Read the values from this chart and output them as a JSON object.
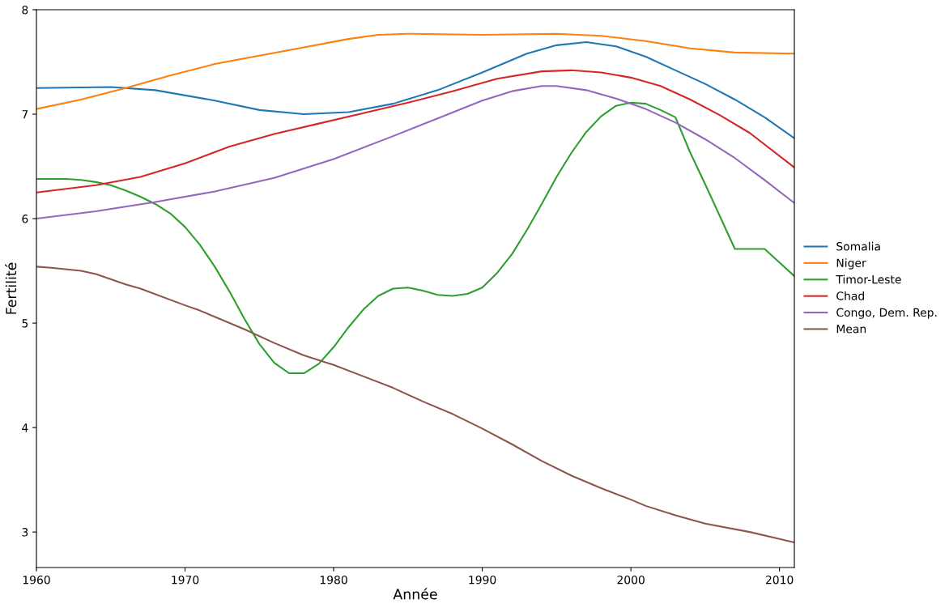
{
  "chart_data": {
    "type": "line",
    "xlabel": "Année",
    "ylabel": "Fertilité",
    "xlim": [
      1960,
      2011
    ],
    "ylim": [
      2.66,
      8
    ],
    "xticks": [
      1960,
      1970,
      1980,
      1990,
      2000,
      2010
    ],
    "yticks": [
      3,
      4,
      5,
      6,
      7,
      8
    ],
    "grid": false,
    "legend": "right",
    "marker": "none",
    "line_style": "solid",
    "series": [
      {
        "name": "Somalia",
        "color": "#1f77b4",
        "x": [
          1960,
          1965,
          1968,
          1972,
          1975,
          1978,
          1981,
          1984,
          1987,
          1990,
          1993,
          1995,
          1997,
          1999,
          2001,
          2003,
          2005,
          2007,
          2009,
          2011
        ],
        "values": [
          7.25,
          7.26,
          7.23,
          7.13,
          7.04,
          7.0,
          7.02,
          7.1,
          7.23,
          7.4,
          7.58,
          7.66,
          7.69,
          7.65,
          7.55,
          7.42,
          7.29,
          7.14,
          6.97,
          6.77
        ]
      },
      {
        "name": "Niger",
        "color": "#ff7f0e",
        "x": [
          1960,
          1963,
          1966,
          1969,
          1972,
          1975,
          1978,
          1981,
          1983,
          1985,
          1990,
          1995,
          1998,
          2001,
          2004,
          2007,
          2011
        ],
        "values": [
          7.05,
          7.14,
          7.25,
          7.37,
          7.48,
          7.56,
          7.64,
          7.72,
          7.76,
          7.77,
          7.76,
          7.77,
          7.75,
          7.7,
          7.63,
          7.59,
          7.58
        ]
      },
      {
        "name": "Timor-Leste",
        "color": "#2ca02c",
        "x": [
          1960,
          1962,
          1963,
          1964,
          1965,
          1966,
          1967,
          1968,
          1969,
          1970,
          1971,
          1972,
          1973,
          1974,
          1975,
          1976,
          1977,
          1978,
          1979,
          1980,
          1981,
          1982,
          1983,
          1984,
          1985,
          1986,
          1987,
          1988,
          1989,
          1990,
          1991,
          1992,
          1993,
          1994,
          1995,
          1996,
          1997,
          1998,
          1999,
          2000,
          2001,
          2002,
          2003,
          2004,
          2005,
          2006,
          2007,
          2008,
          2009,
          2010,
          2011
        ],
        "values": [
          6.38,
          6.38,
          6.37,
          6.35,
          6.32,
          6.27,
          6.21,
          6.14,
          6.05,
          5.92,
          5.75,
          5.54,
          5.3,
          5.04,
          4.8,
          4.62,
          4.52,
          4.52,
          4.61,
          4.77,
          4.96,
          5.13,
          5.26,
          5.33,
          5.34,
          5.31,
          5.27,
          5.26,
          5.28,
          5.34,
          5.48,
          5.66,
          5.89,
          6.14,
          6.4,
          6.63,
          6.83,
          6.98,
          7.08,
          7.11,
          7.1,
          7.04,
          6.97,
          6.63,
          6.33,
          6.02,
          5.71,
          5.71,
          5.71,
          5.58,
          5.45
        ]
      },
      {
        "name": "Chad",
        "color": "#d62728",
        "x": [
          1960,
          1964,
          1967,
          1970,
          1973,
          1976,
          1979,
          1982,
          1985,
          1988,
          1991,
          1994,
          1996,
          1998,
          2000,
          2002,
          2004,
          2006,
          2008,
          2011
        ],
        "values": [
          6.25,
          6.32,
          6.4,
          6.53,
          6.69,
          6.81,
          6.91,
          7.01,
          7.11,
          7.22,
          7.34,
          7.41,
          7.42,
          7.4,
          7.35,
          7.27,
          7.14,
          6.99,
          6.82,
          6.49
        ]
      },
      {
        "name": "Congo, Dem. Rep.",
        "color": "#9467bd",
        "x": [
          1960,
          1964,
          1968,
          1972,
          1976,
          1980,
          1984,
          1987,
          1990,
          1992,
          1994,
          1995,
          1997,
          1999,
          2001,
          2003,
          2005,
          2007,
          2009,
          2011
        ],
        "values": [
          6.0,
          6.07,
          6.16,
          6.26,
          6.39,
          6.57,
          6.79,
          6.96,
          7.13,
          7.22,
          7.27,
          7.27,
          7.23,
          7.15,
          7.05,
          6.92,
          6.76,
          6.58,
          6.37,
          6.15
        ]
      },
      {
        "name": "Mean",
        "color": "#8c564b",
        "x": [
          1960,
          1961,
          1963,
          1964,
          1966,
          1967,
          1970,
          1971,
          1973,
          1974,
          1976,
          1978,
          1980,
          1982,
          1984,
          1986,
          1988,
          1990,
          1992,
          1994,
          1996,
          1998,
          2000,
          2001,
          2003,
          2005,
          2008,
          2011
        ],
        "values": [
          5.54,
          5.53,
          5.5,
          5.47,
          5.37,
          5.33,
          5.17,
          5.12,
          5.0,
          4.94,
          4.81,
          4.69,
          4.6,
          4.49,
          4.38,
          4.25,
          4.13,
          3.99,
          3.84,
          3.68,
          3.54,
          3.42,
          3.31,
          3.25,
          3.16,
          3.08,
          3.0,
          2.9
        ]
      }
    ]
  }
}
